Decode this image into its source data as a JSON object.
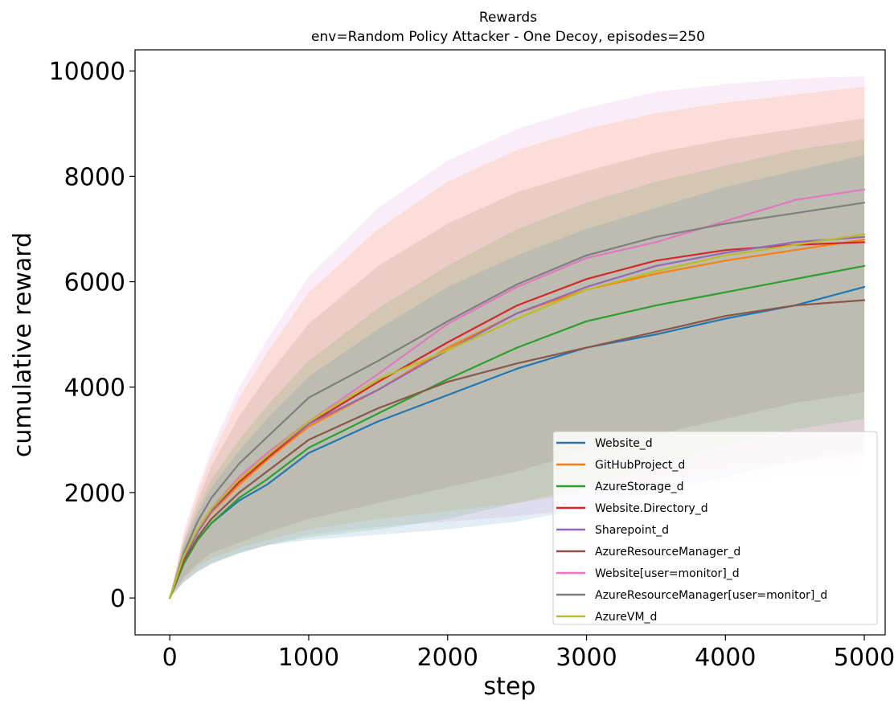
{
  "chart_data": {
    "type": "line",
    "title": "Rewards",
    "subtitle": "env=Random Policy Attacker - One Decoy, episodes=250",
    "xlabel": "step",
    "ylabel": "cumulative reward",
    "xlim": [
      -250,
      5150
    ],
    "ylim": [
      -700,
      10400
    ],
    "xticks": [
      0,
      1000,
      2000,
      3000,
      4000,
      5000
    ],
    "yticks": [
      0,
      2000,
      4000,
      6000,
      8000,
      10000
    ],
    "grid": false,
    "legend_position": "lower-right",
    "x": [
      0,
      100,
      200,
      300,
      500,
      700,
      1000,
      1500,
      2000,
      2500,
      3000,
      3500,
      4000,
      4500,
      5000
    ],
    "series": [
      {
        "name": "Website_d",
        "color": "#1f77b4",
        "values": [
          0,
          650,
          1100,
          1420,
          1850,
          2150,
          2750,
          3350,
          3850,
          4350,
          4750,
          5000,
          5300,
          5550,
          5900
        ]
      },
      {
        "name": "GitHubProject_d",
        "color": "#ff7f0e",
        "values": [
          0,
          750,
          1250,
          1620,
          2150,
          2620,
          3250,
          3950,
          4750,
          5400,
          5850,
          6150,
          6400,
          6600,
          6800
        ]
      },
      {
        "name": "AzureStorage_d",
        "color": "#2ca02c",
        "values": [
          0,
          650,
          1100,
          1420,
          1900,
          2250,
          2850,
          3500,
          4150,
          4750,
          5250,
          5550,
          5800,
          6050,
          6300
        ]
      },
      {
        "name": "Website.Directory_d",
        "color": "#d62728",
        "values": [
          0,
          750,
          1250,
          1650,
          2200,
          2650,
          3300,
          4100,
          4850,
          5550,
          6050,
          6400,
          6600,
          6700,
          6750
        ]
      },
      {
        "name": "Sharepoint_d",
        "color": "#9467bd",
        "values": [
          0,
          750,
          1250,
          1650,
          2250,
          2700,
          3300,
          3950,
          4700,
          5400,
          5900,
          6300,
          6550,
          6750,
          6850
        ]
      },
      {
        "name": "AzureResourceManager_d",
        "color": "#8c564b",
        "values": [
          0,
          700,
          1150,
          1500,
          2000,
          2400,
          3000,
          3600,
          4100,
          4450,
          4750,
          5050,
          5350,
          5550,
          5650
        ]
      },
      {
        "name": "Website[user=monitor]_d",
        "color": "#e377c2",
        "values": [
          0,
          800,
          1300,
          1700,
          2300,
          2750,
          3350,
          4250,
          5200,
          5900,
          6450,
          6750,
          7150,
          7550,
          7750
        ]
      },
      {
        "name": "AzureResourceManager[user=monitor]_d",
        "color": "#7f7f7f",
        "values": [
          0,
          850,
          1450,
          1900,
          2550,
          3050,
          3800,
          4500,
          5250,
          5950,
          6500,
          6850,
          7100,
          7300,
          7500
        ]
      },
      {
        "name": "AzureVM_d",
        "color": "#bcbd22",
        "values": [
          0,
          800,
          1300,
          1700,
          2250,
          2700,
          3350,
          4150,
          4700,
          5300,
          5850,
          6200,
          6500,
          6700,
          6900
        ]
      }
    ],
    "bands": [
      {
        "color": "#e377c2",
        "upper": [
          0,
          1250,
          2100,
          2850,
          4000,
          4900,
          6100,
          7400,
          8300,
          8900,
          9300,
          9600,
          9750,
          9850,
          9900
        ],
        "lower": [
          0,
          300,
          500,
          650,
          850,
          1000,
          1200,
          1350,
          1450,
          1550,
          1700,
          1900,
          2100,
          2250,
          2300
        ]
      },
      {
        "color": "#ff7f0e",
        "upper": [
          0,
          1200,
          2000,
          2700,
          3800,
          4650,
          5800,
          7000,
          7900,
          8500,
          8900,
          9200,
          9400,
          9550,
          9700
        ],
        "lower": [
          0,
          350,
          600,
          750,
          950,
          1100,
          1300,
          1500,
          1650,
          1800,
          2000,
          2200,
          2450,
          2600,
          2700
        ]
      },
      {
        "color": "#8c564b",
        "upper": [
          0,
          1100,
          1850,
          2500,
          3450,
          4200,
          5200,
          6300,
          7100,
          7700,
          8100,
          8450,
          8700,
          8900,
          9100
        ],
        "lower": [
          0,
          400,
          650,
          850,
          1050,
          1250,
          1500,
          1800,
          2100,
          2400,
          2800,
          3100,
          3400,
          3700,
          3900
        ]
      },
      {
        "color": "#1f77b4",
        "upper": [
          0,
          1000,
          1600,
          2100,
          2800,
          3400,
          4200,
          5100,
          5900,
          6500,
          7000,
          7400,
          7800,
          8100,
          8400
        ],
        "lower": [
          0,
          300,
          500,
          650,
          850,
          1000,
          1100,
          1200,
          1300,
          1450,
          1700,
          2000,
          2300,
          2600,
          2800
        ]
      },
      {
        "color": "#2ca02c",
        "upper": [
          0,
          1050,
          1700,
          2250,
          3000,
          3650,
          4500,
          5500,
          6300,
          7000,
          7500,
          7900,
          8200,
          8500,
          8700
        ],
        "lower": [
          0,
          300,
          500,
          650,
          850,
          1000,
          1150,
          1300,
          1500,
          1800,
          2100,
          2500,
          2900,
          3200,
          3400
        ]
      }
    ]
  }
}
